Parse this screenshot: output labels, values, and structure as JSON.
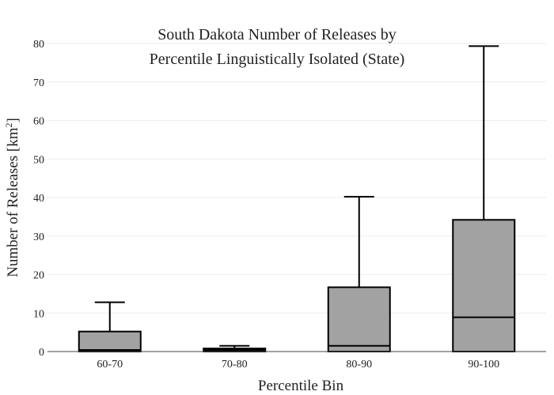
{
  "chart_data": {
    "type": "box",
    "title_lines": [
      "South Dakota Number of Releases by",
      "Percentile Linguistically Isolated (State)"
    ],
    "xlabel": "Percentile Bin",
    "ylabel": "Number of Releases  [km",
    "ylabel_sup": "2",
    "ylabel_close": "]",
    "ylim": [
      0,
      80
    ],
    "yticks": [
      0,
      10,
      20,
      30,
      40,
      50,
      60,
      70,
      80
    ],
    "grid": true,
    "box_color": "#a2a2a2",
    "categories": [
      "60-70",
      "70-80",
      "80-90",
      "90-100"
    ],
    "boxes": [
      {
        "category": "60-70",
        "min": 0,
        "q1": 0.2,
        "median": 0.4,
        "q3": 5.2,
        "max": 12.8
      },
      {
        "category": "70-80",
        "min": 0,
        "q1": 0.1,
        "median": 0.4,
        "q3": 0.8,
        "max": 1.5
      },
      {
        "category": "80-90",
        "min": 0,
        "q1": 0.3,
        "median": 1.5,
        "q3": 16.7,
        "max": 40.2
      },
      {
        "category": "90-100",
        "min": 0,
        "q1": 0.2,
        "median": 8.9,
        "q3": 34.2,
        "max": 79.3
      }
    ]
  }
}
